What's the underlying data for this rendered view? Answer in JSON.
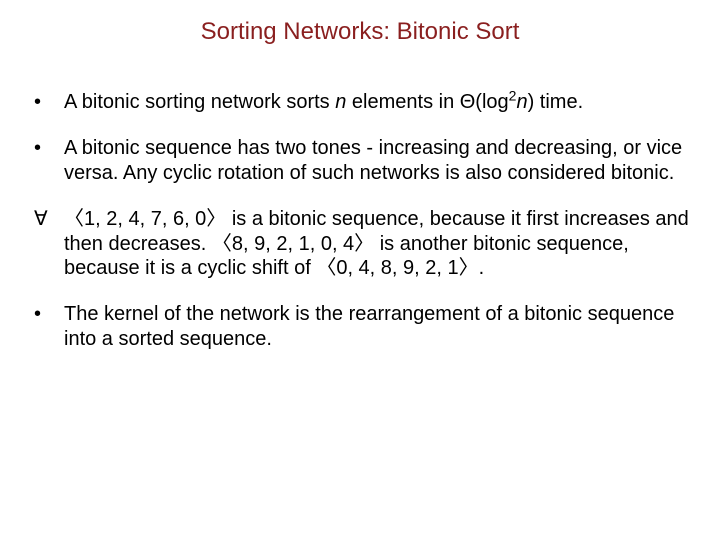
{
  "title": "Sorting Networks: Bitonic Sort",
  "title_color": "#8a1f1f",
  "title_fontsize": 24,
  "body_color": "#000000",
  "body_fontsize": 20,
  "background_color": "#ffffff",
  "bullets": [
    {
      "mark": "•",
      "segments": [
        {
          "t": "A bitonic sorting network sorts "
        },
        {
          "t": "n",
          "italic": true
        },
        {
          "t": " elements in Θ(log"
        },
        {
          "t": "2",
          "sup": true
        },
        {
          "t": "n",
          "italic": true
        },
        {
          "t": ")  time."
        }
      ]
    },
    {
      "mark": "•",
      "segments": [
        {
          "t": "A bitonic sequence has two tones - increasing and decreasing, or vice versa. Any cyclic rotation of such networks is also considered bitonic."
        }
      ]
    },
    {
      "mark": "∀",
      "segments": [
        {
          "t": "〈1, 2, 4, 7, 6, 0〉 is a bitonic sequence, because it first increases and then decreases. 〈8, 9, 2, 1, 0, 4〉 is another bitonic sequence, because it is a cyclic shift of 〈0, 4, 8, 9, 2, 1〉."
        }
      ]
    },
    {
      "mark": "•",
      "segments": [
        {
          "t": "The kernel of the network is the rearrangement of a bitonic sequence into a sorted sequence."
        }
      ]
    }
  ]
}
